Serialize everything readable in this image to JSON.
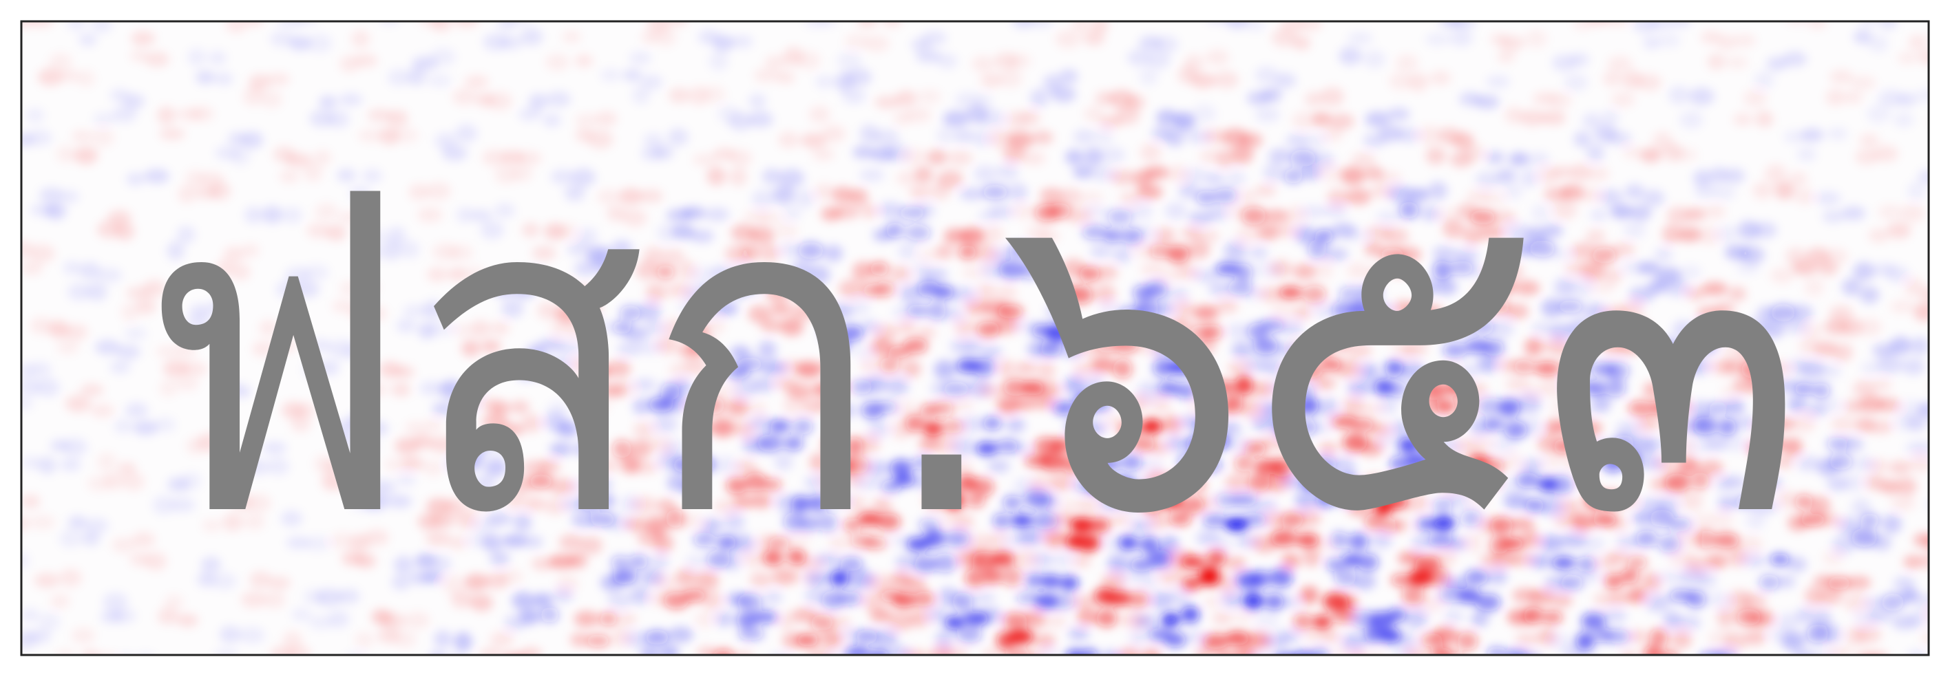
{
  "image": {
    "text": "ฟสก.๖๕๓"
  }
}
